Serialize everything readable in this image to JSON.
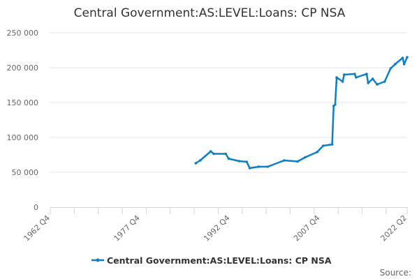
{
  "chart_data": {
    "type": "line",
    "title": "Central Government:AS:LEVEL:Loans: CP NSA",
    "xlabel": "",
    "ylabel": "",
    "xlim": [
      "1962 Q4",
      "2022 Q2"
    ],
    "ylim": [
      0,
      250000
    ],
    "yticks": [
      0,
      50000,
      100000,
      150000,
      200000,
      250000
    ],
    "ytick_labels": [
      "0",
      "50 000",
      "100 000",
      "150 000",
      "200 000",
      "250 000"
    ],
    "xtick_labels": [
      "1962 Q4",
      "1977 Q4",
      "1992 Q4",
      "2007 Q4",
      "2022 Q2"
    ],
    "grid": true,
    "legend_position": "bottom",
    "source_label": "Source:",
    "series": [
      {
        "name": "Central Government:AS:LEVEL:Loans: CP NSA",
        "color": "#0b7fc7",
        "x": [
          "1987 Q1",
          "1987 Q4",
          "1989 Q3",
          "1990 Q1",
          "1992 Q1",
          "1992 Q3",
          "1994 Q2",
          "1995 Q3",
          "1996 Q1",
          "1997 Q3",
          "1999 Q1",
          "2001 Q4",
          "2004 Q1",
          "2005 Q2",
          "2007 Q2",
          "2008 Q2",
          "2009 Q4",
          "2010 Q1",
          "2010 Q2",
          "2010 Q3",
          "2011 Q3",
          "2011 Q4",
          "2013 Q3",
          "2013 Q4",
          "2015 Q3",
          "2015 Q4",
          "2016 Q3",
          "2017 Q2",
          "2018 Q3",
          "2019 Q3",
          "2020 Q2",
          "2021 Q3",
          "2021 Q4",
          "2022 Q2"
        ],
        "values": [
          63000,
          67000,
          80000,
          76500,
          76500,
          69500,
          66000,
          65000,
          56000,
          58000,
          58000,
          67000,
          65500,
          71500,
          79000,
          88000,
          90000,
          145000,
          147000,
          186000,
          180000,
          190000,
          191000,
          186000,
          191000,
          178000,
          184000,
          176000,
          180000,
          199000,
          205000,
          214000,
          205000,
          215000
        ]
      }
    ]
  }
}
